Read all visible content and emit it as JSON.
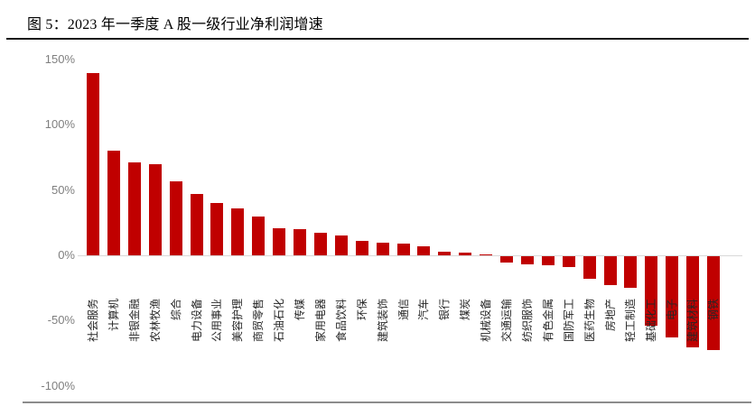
{
  "figure": {
    "title": "图 5：2023 年一季度 A 股一级行业净利润增速"
  },
  "chart_data": {
    "type": "bar",
    "title": "2023 年一季度 A 股一级行业净利润增速",
    "xlabel": "",
    "ylabel": "",
    "unit": "%",
    "ylim": [
      -100,
      150
    ],
    "grid": false,
    "legend": null,
    "bar_color": "#c00000",
    "yticks": [
      {
        "label": "150%",
        "value": 150
      },
      {
        "label": "100%",
        "value": 100
      },
      {
        "label": "50%",
        "value": 50
      },
      {
        "label": "0%",
        "value": 0
      },
      {
        "label": "-50%",
        "value": -50
      },
      {
        "label": "-100%",
        "value": -100
      }
    ],
    "categories": [
      "社会服务",
      "计算机",
      "非银金融",
      "农林牧渔",
      "综合",
      "电力设备",
      "公用事业",
      "美容护理",
      "商贸零售",
      "石油石化",
      "传媒",
      "家用电器",
      "食品饮料",
      "环保",
      "建筑装饰",
      "通信",
      "汽车",
      "银行",
      "煤炭",
      "机械设备",
      "交通运输",
      "纺织服饰",
      "有色金属",
      "国防军工",
      "医药生物",
      "房地产",
      "轻工制造",
      "基础化工",
      "电子",
      "建筑材料",
      "钢铁"
    ],
    "values": [
      140,
      80,
      71,
      70,
      57,
      47,
      40,
      36,
      30,
      21,
      20,
      17,
      15,
      11,
      10,
      9,
      7,
      3,
      2,
      1,
      -5,
      -6,
      -7,
      -8,
      -17,
      -22,
      -24,
      -53,
      -62,
      -70,
      -72
    ]
  },
  "colors": {
    "bar": "#c00000",
    "axis_label": "#7f7f7f",
    "category_label": "#262626",
    "zero_line": "#d9d9d9",
    "title_rule": "#1a1a1a",
    "bottom_rule": "#8c8c8c"
  }
}
